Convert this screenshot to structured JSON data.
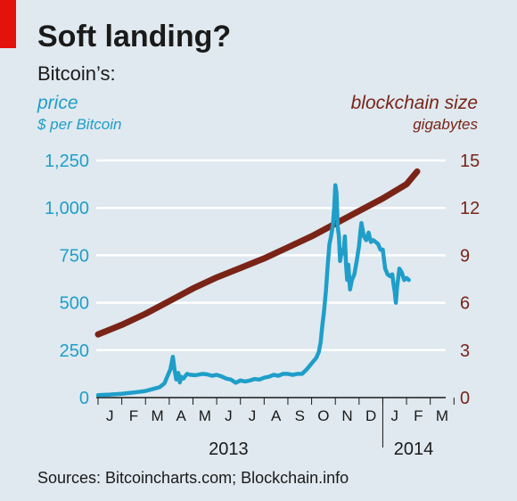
{
  "header": {
    "title": "Soft landing?",
    "subtitle": "Bitcoin’s:"
  },
  "footer": {
    "source": "Sources: Bitcoincharts.com; Blockchain.info"
  },
  "colors": {
    "price": "#1f9ec9",
    "blockchain": "#7a2418",
    "background": "#dfe9ef",
    "grid": "#ffffff",
    "accent": "#e3120b"
  },
  "chart_data": {
    "type": "line",
    "x_labels": [
      "J",
      "F",
      "M",
      "A",
      "M",
      "J",
      "J",
      "A",
      "S",
      "O",
      "N",
      "D",
      "J",
      "F",
      "M"
    ],
    "year_labels": [
      {
        "label": "2013",
        "month_index": 5.5
      },
      {
        "label": "2014",
        "month_index": 13.3
      }
    ],
    "x_range_months": [
      0,
      14.5
    ],
    "grid": true,
    "series": [
      {
        "name": "price",
        "unit": "$ per Bitcoin",
        "axis": "left",
        "ylim": [
          0,
          1250
        ],
        "yticks": [
          "0",
          "250",
          "500",
          "750",
          "1,000",
          "1,250"
        ],
        "points": [
          [
            0.0,
            13
          ],
          [
            0.5,
            16
          ],
          [
            1.0,
            20
          ],
          [
            1.5,
            27
          ],
          [
            2.0,
            35
          ],
          [
            2.3,
            45
          ],
          [
            2.6,
            55
          ],
          [
            2.8,
            75
          ],
          [
            2.95,
            120
          ],
          [
            3.05,
            150
          ],
          [
            3.15,
            215
          ],
          [
            3.22,
            150
          ],
          [
            3.3,
            95
          ],
          [
            3.38,
            130
          ],
          [
            3.45,
            80
          ],
          [
            3.5,
            110
          ],
          [
            3.6,
            100
          ],
          [
            3.75,
            125
          ],
          [
            3.9,
            120
          ],
          [
            4.1,
            118
          ],
          [
            4.4,
            125
          ],
          [
            4.6,
            122
          ],
          [
            4.8,
            115
          ],
          [
            5.0,
            120
          ],
          [
            5.2,
            112
          ],
          [
            5.4,
            100
          ],
          [
            5.6,
            95
          ],
          [
            5.8,
            78
          ],
          [
            6.0,
            90
          ],
          [
            6.2,
            85
          ],
          [
            6.4,
            90
          ],
          [
            6.6,
            98
          ],
          [
            6.8,
            95
          ],
          [
            7.0,
            105
          ],
          [
            7.2,
            110
          ],
          [
            7.4,
            120
          ],
          [
            7.6,
            115
          ],
          [
            7.8,
            125
          ],
          [
            8.0,
            125
          ],
          [
            8.2,
            120
          ],
          [
            8.4,
            125
          ],
          [
            8.6,
            125
          ],
          [
            8.8,
            150
          ],
          [
            9.0,
            180
          ],
          [
            9.1,
            195
          ],
          [
            9.2,
            210
          ],
          [
            9.3,
            240
          ],
          [
            9.38,
            290
          ],
          [
            9.45,
            380
          ],
          [
            9.52,
            450
          ],
          [
            9.6,
            560
          ],
          [
            9.68,
            700
          ],
          [
            9.75,
            810
          ],
          [
            9.82,
            850
          ],
          [
            9.9,
            910
          ],
          [
            9.95,
            1000
          ],
          [
            10.0,
            1120
          ],
          [
            10.05,
            1080
          ],
          [
            10.1,
            900
          ],
          [
            10.15,
            850
          ],
          [
            10.2,
            720
          ],
          [
            10.28,
            780
          ],
          [
            10.34,
            760
          ],
          [
            10.4,
            850
          ],
          [
            10.45,
            700
          ],
          [
            10.5,
            620
          ],
          [
            10.55,
            700
          ],
          [
            10.62,
            570
          ],
          [
            10.7,
            620
          ],
          [
            10.8,
            650
          ],
          [
            10.9,
            720
          ],
          [
            11.0,
            800
          ],
          [
            11.05,
            870
          ],
          [
            11.1,
            920
          ],
          [
            11.2,
            850
          ],
          [
            11.3,
            830
          ],
          [
            11.4,
            870
          ],
          [
            11.5,
            820
          ],
          [
            11.6,
            830
          ],
          [
            11.7,
            820
          ],
          [
            11.8,
            810
          ],
          [
            11.9,
            780
          ],
          [
            12.0,
            780
          ],
          [
            12.1,
            680
          ],
          [
            12.2,
            650
          ],
          [
            12.3,
            640
          ],
          [
            12.4,
            650
          ],
          [
            12.45,
            600
          ],
          [
            12.5,
            560
          ],
          [
            12.55,
            500
          ],
          [
            12.6,
            580
          ],
          [
            12.7,
            680
          ],
          [
            12.8,
            660
          ],
          [
            12.9,
            620
          ],
          [
            13.0,
            630
          ],
          [
            13.1,
            620
          ]
        ]
      },
      {
        "name": "blockchain size",
        "unit": "gigabytes",
        "axis": "right",
        "ylim": [
          0,
          15
        ],
        "yticks": [
          "0",
          "3",
          "6",
          "9",
          "12",
          "15"
        ],
        "points": [
          [
            0.0,
            4.0
          ],
          [
            1.0,
            4.6
          ],
          [
            2.0,
            5.3
          ],
          [
            3.0,
            6.1
          ],
          [
            4.0,
            6.9
          ],
          [
            5.0,
            7.6
          ],
          [
            6.0,
            8.2
          ],
          [
            7.0,
            8.8
          ],
          [
            8.0,
            9.5
          ],
          [
            9.0,
            10.2
          ],
          [
            10.0,
            11.0
          ],
          [
            11.0,
            11.8
          ],
          [
            12.0,
            12.6
          ],
          [
            13.0,
            13.5
          ],
          [
            13.45,
            14.3
          ]
        ]
      }
    ]
  }
}
